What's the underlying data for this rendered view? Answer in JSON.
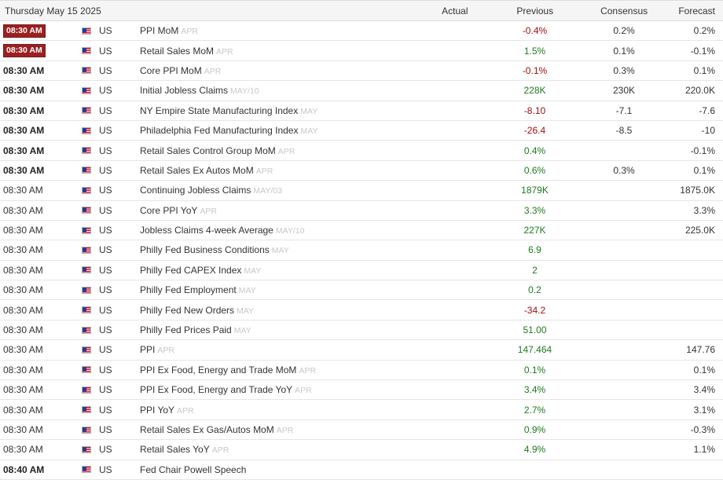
{
  "header": {
    "date": "Thursday May 15 2025",
    "actual": "Actual",
    "previous": "Previous",
    "consensus": "Consensus",
    "forecast": "Forecast"
  },
  "colors": {
    "badge_bg": "#9c2020",
    "positive": "#1e7a1e",
    "negative": "#a01010"
  },
  "rows": [
    {
      "time": "08:30 AM",
      "time_style": "badge",
      "country": "US",
      "event": "PPI MoM",
      "period": "APR",
      "actual": "",
      "previous": "-0.4%",
      "previous_color": "neg",
      "consensus": "0.2%",
      "forecast": "0.2%"
    },
    {
      "time": "08:30 AM",
      "time_style": "badge",
      "country": "US",
      "event": "Retail Sales MoM",
      "period": "APR",
      "actual": "",
      "previous": "1.5%",
      "previous_color": "pos",
      "consensus": "0.1%",
      "forecast": "-0.1%"
    },
    {
      "time": "08:30 AM",
      "time_style": "bold",
      "country": "US",
      "event": "Core PPI MoM",
      "period": "APR",
      "actual": "",
      "previous": "-0.1%",
      "previous_color": "neg",
      "consensus": "0.3%",
      "forecast": "0.1%"
    },
    {
      "time": "08:30 AM",
      "time_style": "bold",
      "country": "US",
      "event": "Initial Jobless Claims",
      "period": "MAY/10",
      "actual": "",
      "previous": "228K",
      "previous_color": "pos",
      "consensus": "230K",
      "forecast": "220.0K"
    },
    {
      "time": "08:30 AM",
      "time_style": "bold",
      "country": "US",
      "event": "NY Empire State Manufacturing Index",
      "period": "MAY",
      "actual": "",
      "previous": "-8.10",
      "previous_color": "neg",
      "consensus": "-7.1",
      "forecast": "-7.6"
    },
    {
      "time": "08:30 AM",
      "time_style": "bold",
      "country": "US",
      "event": "Philadelphia Fed Manufacturing Index",
      "period": "MAY",
      "actual": "",
      "previous": "-26.4",
      "previous_color": "neg",
      "consensus": "-8.5",
      "forecast": "-10"
    },
    {
      "time": "08:30 AM",
      "time_style": "bold",
      "country": "US",
      "event": "Retail Sales Control Group MoM",
      "period": "APR",
      "actual": "",
      "previous": "0.4%",
      "previous_color": "pos",
      "consensus": "",
      "forecast": "-0.1%"
    },
    {
      "time": "08:30 AM",
      "time_style": "bold",
      "country": "US",
      "event": "Retail Sales Ex Autos MoM",
      "period": "APR",
      "actual": "",
      "previous": "0.6%",
      "previous_color": "pos",
      "consensus": "0.3%",
      "forecast": "0.1%"
    },
    {
      "time": "08:30 AM",
      "time_style": "normal",
      "country": "US",
      "event": "Continuing Jobless Claims",
      "period": "MAY/03",
      "actual": "",
      "previous": "1879K",
      "previous_color": "pos",
      "consensus": "",
      "forecast": "1875.0K"
    },
    {
      "time": "08:30 AM",
      "time_style": "normal",
      "country": "US",
      "event": "Core PPI YoY",
      "period": "APR",
      "actual": "",
      "previous": "3.3%",
      "previous_color": "pos",
      "consensus": "",
      "forecast": "3.3%"
    },
    {
      "time": "08:30 AM",
      "time_style": "normal",
      "country": "US",
      "event": "Jobless Claims 4-week Average",
      "period": "MAY/10",
      "actual": "",
      "previous": "227K",
      "previous_color": "pos",
      "consensus": "",
      "forecast": "225.0K"
    },
    {
      "time": "08:30 AM",
      "time_style": "normal",
      "country": "US",
      "event": "Philly Fed Business Conditions",
      "period": "MAY",
      "actual": "",
      "previous": "6.9",
      "previous_color": "pos",
      "consensus": "",
      "forecast": ""
    },
    {
      "time": "08:30 AM",
      "time_style": "normal",
      "country": "US",
      "event": "Philly Fed CAPEX Index",
      "period": "MAY",
      "actual": "",
      "previous": "2",
      "previous_color": "pos",
      "consensus": "",
      "forecast": ""
    },
    {
      "time": "08:30 AM",
      "time_style": "normal",
      "country": "US",
      "event": "Philly Fed Employment",
      "period": "MAY",
      "actual": "",
      "previous": "0.2",
      "previous_color": "pos",
      "consensus": "",
      "forecast": ""
    },
    {
      "time": "08:30 AM",
      "time_style": "normal",
      "country": "US",
      "event": "Philly Fed New Orders",
      "period": "MAY",
      "actual": "",
      "previous": "-34.2",
      "previous_color": "neg",
      "consensus": "",
      "forecast": ""
    },
    {
      "time": "08:30 AM",
      "time_style": "normal",
      "country": "US",
      "event": "Philly Fed Prices Paid",
      "period": "MAY",
      "actual": "",
      "previous": "51.00",
      "previous_color": "pos",
      "consensus": "",
      "forecast": ""
    },
    {
      "time": "08:30 AM",
      "time_style": "normal",
      "country": "US",
      "event": "PPI",
      "period": "APR",
      "actual": "",
      "previous": "147.464",
      "previous_color": "pos",
      "consensus": "",
      "forecast": "147.76"
    },
    {
      "time": "08:30 AM",
      "time_style": "normal",
      "country": "US",
      "event": "PPI Ex Food, Energy and Trade MoM",
      "period": "APR",
      "actual": "",
      "previous": "0.1%",
      "previous_color": "pos",
      "consensus": "",
      "forecast": "0.1%"
    },
    {
      "time": "08:30 AM",
      "time_style": "normal",
      "country": "US",
      "event": "PPI Ex Food, Energy and Trade YoY",
      "period": "APR",
      "actual": "",
      "previous": "3.4%",
      "previous_color": "pos",
      "consensus": "",
      "forecast": "3.4%"
    },
    {
      "time": "08:30 AM",
      "time_style": "normal",
      "country": "US",
      "event": "PPI YoY",
      "period": "APR",
      "actual": "",
      "previous": "2.7%",
      "previous_color": "pos",
      "consensus": "",
      "forecast": "3.1%"
    },
    {
      "time": "08:30 AM",
      "time_style": "normal",
      "country": "US",
      "event": "Retail Sales Ex Gas/Autos MoM",
      "period": "APR",
      "actual": "",
      "previous": "0.9%",
      "previous_color": "pos",
      "consensus": "",
      "forecast": "-0.3%"
    },
    {
      "time": "08:30 AM",
      "time_style": "normal",
      "country": "US",
      "event": "Retail Sales YoY",
      "period": "APR",
      "actual": "",
      "previous": "4.9%",
      "previous_color": "pos",
      "consensus": "",
      "forecast": "1.1%"
    },
    {
      "time": "08:40 AM",
      "time_style": "bold",
      "country": "US",
      "event": "Fed Chair Powell Speech",
      "period": "",
      "actual": "",
      "previous": "",
      "previous_color": "neutral",
      "consensus": "",
      "forecast": ""
    }
  ]
}
